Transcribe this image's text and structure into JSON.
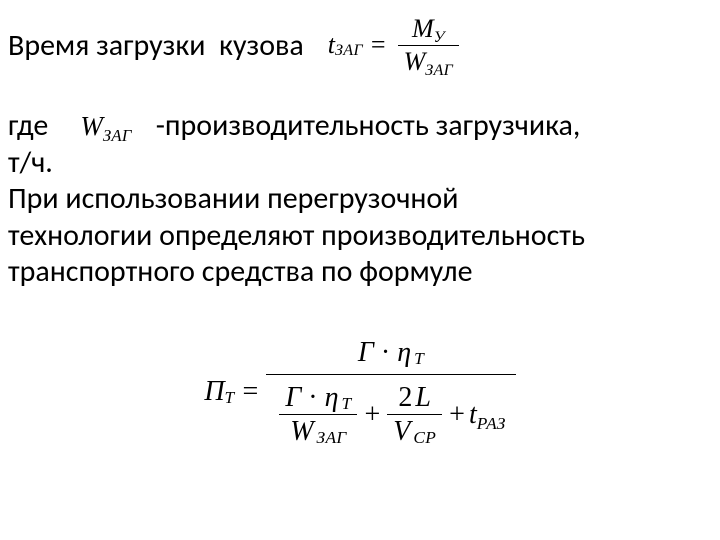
{
  "line1_text": "Время загрузки  кузова",
  "eq1": {
    "lhs_var": "t",
    "lhs_sub": "ЗАГ",
    "equals": "=",
    "num_var": "M",
    "num_sub": "У",
    "den_var": "W",
    "den_sub": "ЗАГ"
  },
  "where": {
    "gde": "где",
    "sym_var": "W",
    "sym_sub": "ЗАГ",
    "rest": "-производительность загрузчика,"
  },
  "para_lines": [
    "т/ч.",
    "При использовании перегрузочной",
    "технологии определяют производительность",
    "транспортного средства по формуле"
  ],
  "big": {
    "lhs_var": "П",
    "lhs_sub": "Т",
    "equals": "=",
    "num": {
      "g": "Г",
      "dot": "·",
      "eta": "η",
      "eta_sub": "Т"
    },
    "den": {
      "t1": {
        "num_g": "Г",
        "num_dot": "·",
        "num_eta": "η",
        "num_eta_sub": "Т",
        "den_var": "W",
        "den_sub": "ЗАГ"
      },
      "plus1": "+",
      "t2": {
        "num_2": "2",
        "num_L": "L",
        "den_var": "V",
        "den_sub": "СР"
      },
      "plus2": "+",
      "t3_var": "t",
      "t3_sub": "РАЗ"
    }
  }
}
